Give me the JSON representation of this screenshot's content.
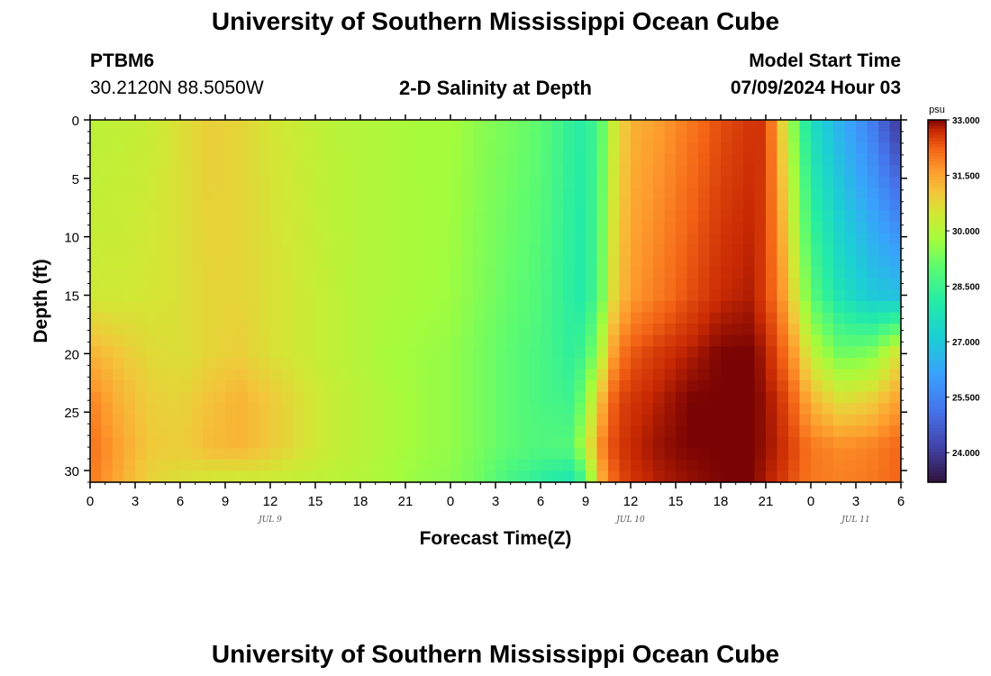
{
  "page": {
    "title": "University of Southern Mississippi Ocean Cube",
    "station_id": "PTBM6",
    "coordinates": "30.2120N  88.5050W",
    "chart_subtitle": "2-D Salinity at Depth",
    "model_start_label": "Model Start Time",
    "model_start_value": "07/09/2024 Hour 03",
    "footer_title": "University of Southern Mississippi Ocean Cube"
  },
  "chart_data": {
    "type": "heatmap",
    "title": "2-D Salinity at Depth",
    "xlabel": "Forecast Time(Z)",
    "ylabel": "Depth (ft)",
    "x_range_hours": [
      0,
      54
    ],
    "x_tick_labels": [
      "0",
      "3",
      "6",
      "9",
      "12",
      "15",
      "18",
      "21",
      "0",
      "3",
      "6",
      "9",
      "12",
      "15",
      "18",
      "21",
      "0",
      "3",
      "6"
    ],
    "x_tick_hours": [
      0,
      3,
      6,
      9,
      12,
      15,
      18,
      21,
      24,
      27,
      30,
      33,
      36,
      39,
      42,
      45,
      48,
      51,
      54
    ],
    "date_labels": [
      {
        "label": "JUL 9",
        "hour": 12
      },
      {
        "label": "JUL 10",
        "hour": 36
      },
      {
        "label": "JUL 11",
        "hour": 51
      }
    ],
    "y_range_ft": [
      0,
      31
    ],
    "y_ticks": [
      "0",
      "5",
      "10",
      "15",
      "20",
      "25",
      "30"
    ],
    "y_tick_values": [
      0,
      5,
      10,
      15,
      20,
      25,
      30
    ],
    "colorbar": {
      "unit": "psu",
      "min": 23.2,
      "max": 33.0,
      "tick_labels": [
        "33.000",
        "31.500",
        "30.000",
        "28.500",
        "27.000",
        "25.500",
        "24.000"
      ],
      "tick_values": [
        33.0,
        31.5,
        30.0,
        28.5,
        27.0,
        25.5,
        24.0
      ]
    },
    "salinity_profile_psu": {
      "depth_ft": [
        0,
        15,
        20,
        24,
        28,
        31
      ],
      "hours": [
        0,
        2,
        4,
        6,
        8,
        10,
        12,
        14,
        16,
        18,
        20,
        22,
        24,
        26,
        28,
        30,
        32,
        33,
        34,
        35,
        36,
        38,
        40,
        42,
        44,
        45,
        46,
        47,
        48,
        50,
        52,
        54
      ],
      "values": [
        [
          30.1,
          30.2,
          30.3,
          30.6,
          30.9,
          30.8,
          30.5,
          30.3,
          30.1,
          30.0,
          29.9,
          29.8,
          29.8,
          29.5,
          29.3,
          29.0,
          28.3,
          28.1,
          28.9,
          30.5,
          31.3,
          31.6,
          32.0,
          32.4,
          32.6,
          32.6,
          31.0,
          29.2,
          27.6,
          26.4,
          25.4,
          23.8
        ],
        [
          30.4,
          30.4,
          30.5,
          30.6,
          30.8,
          30.8,
          30.6,
          30.4,
          30.2,
          30.0,
          29.9,
          29.8,
          29.7,
          29.4,
          29.1,
          28.8,
          28.2,
          28.0,
          29.1,
          30.9,
          31.6,
          32.0,
          32.4,
          32.7,
          32.8,
          32.5,
          31.8,
          30.5,
          29.0,
          27.7,
          27.0,
          26.8
        ],
        [
          31.3,
          31.0,
          30.7,
          30.6,
          30.8,
          30.9,
          30.6,
          30.4,
          30.2,
          30.0,
          29.8,
          29.7,
          29.6,
          29.3,
          29.0,
          28.7,
          28.3,
          28.6,
          30.0,
          31.8,
          32.3,
          32.6,
          32.8,
          33.0,
          33.0,
          32.8,
          32.3,
          31.5,
          30.2,
          29.2,
          29.4,
          30.7
        ],
        [
          31.9,
          31.3,
          30.9,
          30.8,
          31.1,
          31.3,
          31.0,
          30.6,
          30.3,
          30.1,
          29.9,
          29.7,
          29.6,
          29.3,
          29.0,
          28.7,
          28.5,
          29.4,
          31.2,
          32.4,
          32.6,
          32.8,
          33.0,
          33.0,
          33.0,
          32.9,
          32.6,
          32.1,
          31.3,
          30.6,
          30.9,
          31.6
        ],
        [
          32.1,
          31.5,
          31.0,
          30.9,
          31.2,
          31.3,
          31.0,
          30.6,
          30.3,
          30.1,
          29.9,
          29.7,
          29.6,
          29.3,
          29.0,
          28.8,
          28.9,
          30.1,
          31.8,
          32.5,
          32.7,
          32.9,
          33.0,
          33.0,
          33.0,
          32.9,
          32.7,
          32.4,
          32.0,
          31.8,
          31.9,
          32.2
        ],
        [
          32.0,
          31.4,
          30.8,
          30.6,
          30.4,
          30.3,
          30.3,
          30.2,
          30.1,
          30.0,
          29.8,
          29.6,
          29.5,
          29.2,
          28.6,
          28.2,
          27.8,
          28.7,
          31.3,
          32.3,
          32.6,
          32.8,
          32.9,
          33.0,
          33.0,
          32.8,
          32.6,
          32.3,
          32.0,
          31.9,
          32.0,
          32.2
        ]
      ]
    }
  }
}
